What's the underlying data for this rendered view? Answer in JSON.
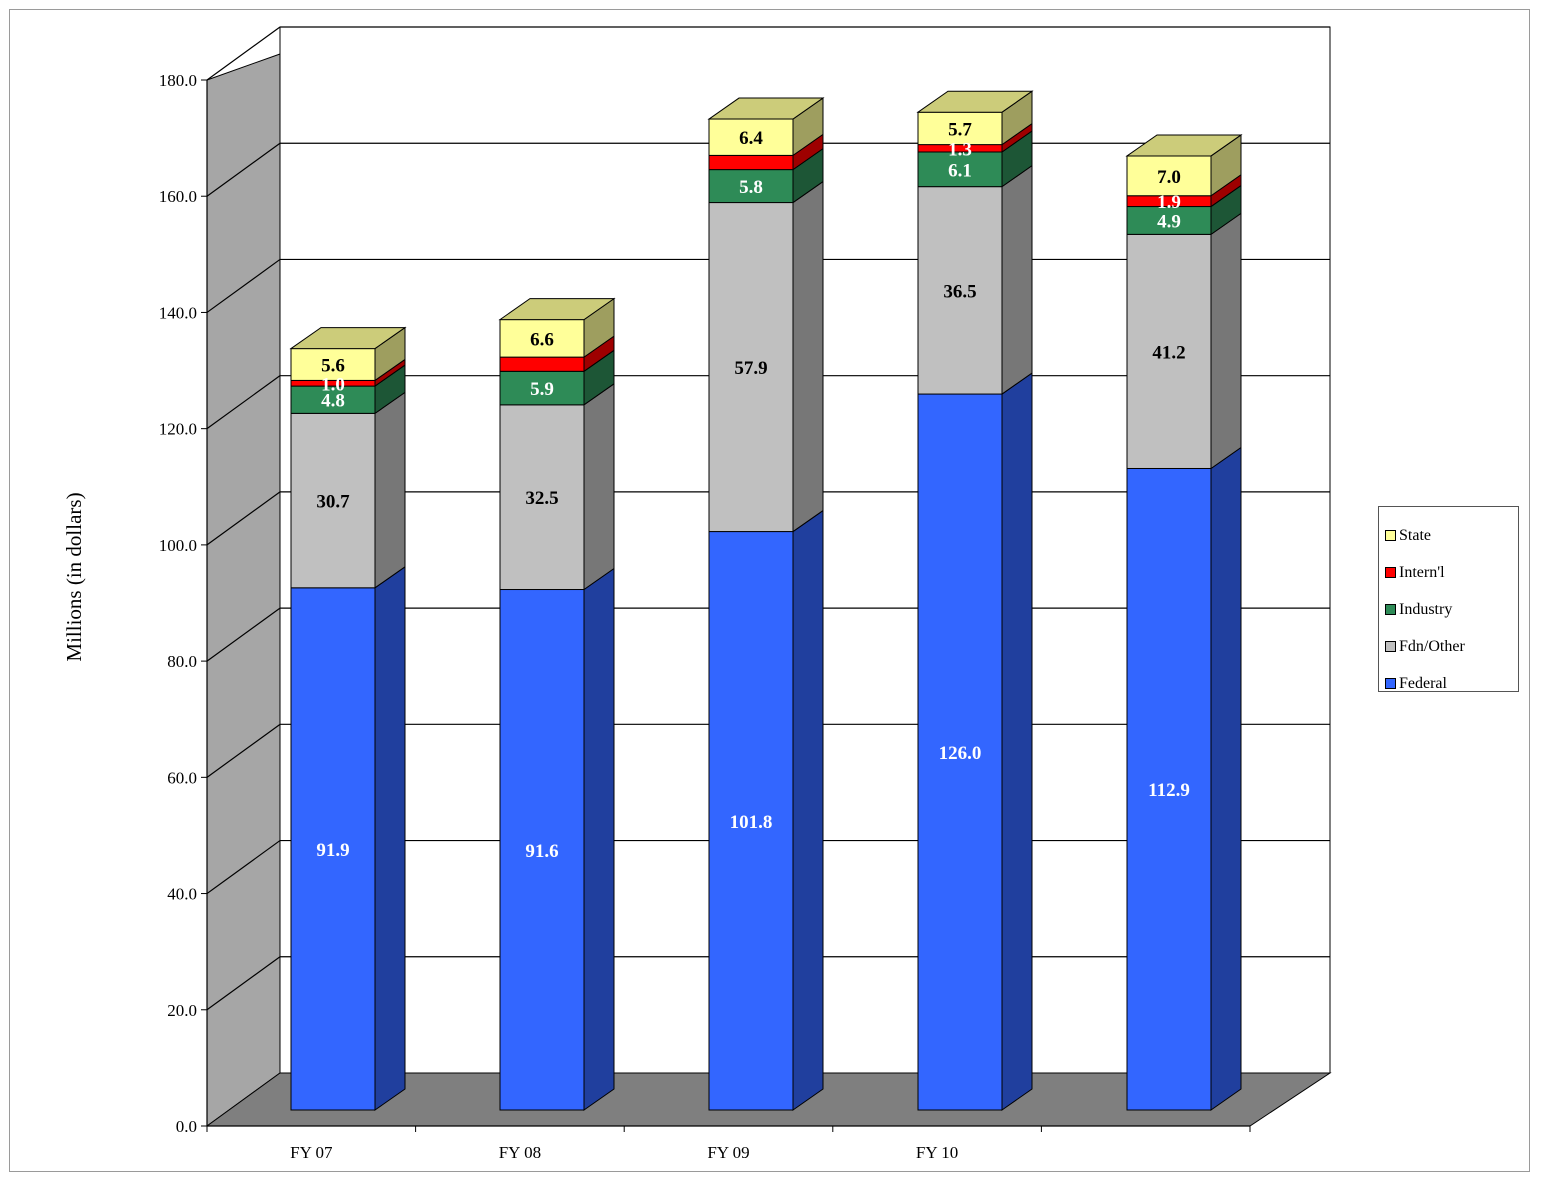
{
  "chart_data": {
    "type": "bar",
    "stacked": true,
    "three_d": true,
    "ylabel": "Millions (in dollars)",
    "ylim": [
      0,
      180
    ],
    "yticks": [
      "0.0",
      "20.0",
      "40.0",
      "60.0",
      "80.0",
      "100.0",
      "120.0",
      "140.0",
      "160.0",
      "180.0"
    ],
    "categories": [
      "FY 07",
      "FY 08",
      "FY 09",
      "FY 10",
      ""
    ],
    "grid": true,
    "legend_position": "right",
    "series": [
      {
        "name": "Federal",
        "color": "#3366ff",
        "label_color": "#ffffff",
        "values": [
          91.9,
          91.6,
          101.8,
          126.0,
          112.9
        ],
        "labels": [
          "91.9",
          "91.6",
          "101.8",
          "126.0",
          "112.9"
        ]
      },
      {
        "name": "Fdn/Other",
        "color": "#c0c0c0",
        "label_color": "#000000",
        "values": [
          30.7,
          32.5,
          57.9,
          36.5,
          41.2
        ],
        "labels": [
          "30.7",
          "32.5",
          "57.9",
          "36.5",
          "41.2"
        ]
      },
      {
        "name": "Industry",
        "color": "#2e8b57",
        "label_color": "#ffffff",
        "values": [
          4.8,
          5.9,
          5.8,
          6.1,
          4.9
        ],
        "labels": [
          "4.8",
          "5.9",
          "5.8",
          "6.1",
          "4.9"
        ]
      },
      {
        "name": "Intern'l",
        "color": "#ff0000",
        "label_color": "#ffffff",
        "values": [
          1.0,
          2.5,
          2.5,
          1.3,
          1.9
        ],
        "labels": [
          "1.0",
          "",
          "",
          "1.3",
          "1.9"
        ]
      },
      {
        "name": "State",
        "color": "#ffff99",
        "label_color": "#000000",
        "values": [
          5.6,
          6.6,
          6.4,
          5.7,
          7.0
        ],
        "labels": [
          "5.6",
          "6.6",
          "6.4",
          "5.7",
          "7.0"
        ]
      }
    ]
  },
  "legend": {
    "items": [
      {
        "name": "State",
        "color": "#ffff99"
      },
      {
        "name": "Intern'l",
        "color": "#ff0000"
      },
      {
        "name": "Industry",
        "color": "#2e8b57"
      },
      {
        "name": "Fdn/Other",
        "color": "#c0c0c0"
      },
      {
        "name": "Federal",
        "color": "#3366ff"
      }
    ]
  }
}
